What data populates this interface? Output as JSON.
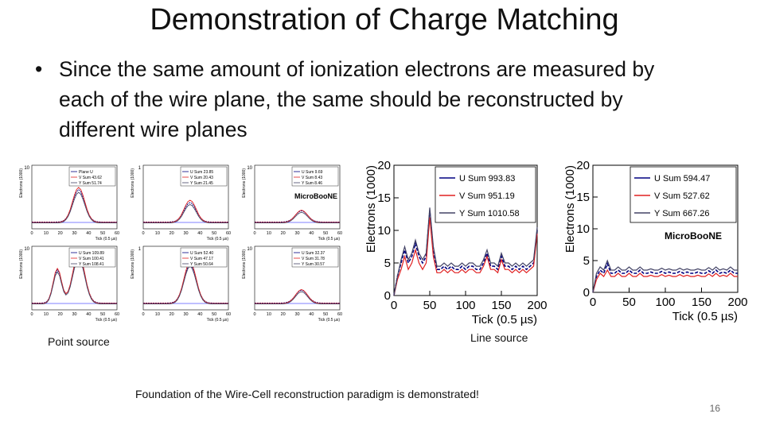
{
  "slide": {
    "title": "Demonstration of Charge Matching",
    "bullet": "Since the same amount of ionization electrons are measured by each of the wire plane, the same should be reconstructed by different wire planes",
    "caption_point": "Point source",
    "caption_line": "Line source",
    "footer": "Foundation of the Wire-Cell reconstruction paradigm is demonstrated!",
    "slide_number": "16"
  },
  "colors": {
    "u": "#000080",
    "v": "#e02020",
    "y": "#444466",
    "ref": "#5555ff"
  },
  "chart_data": [
    {
      "type": "line",
      "title": "",
      "xlabel": "Tick (0.5 µs)",
      "ylabel": "Electrons (1000)",
      "xlim": [
        0,
        200
      ],
      "ylim": [
        0,
        20
      ],
      "xticks": [
        "0",
        "50",
        "100",
        "150",
        "200"
      ],
      "yticks": [
        "0",
        "5",
        "10",
        "15",
        "20"
      ],
      "legend": "top-right",
      "x": [
        0,
        5,
        10,
        15,
        20,
        25,
        30,
        35,
        40,
        45,
        50,
        55,
        60,
        65,
        70,
        75,
        80,
        85,
        90,
        95,
        100,
        105,
        110,
        115,
        120,
        125,
        130,
        135,
        140,
        145,
        150,
        155,
        160,
        165,
        170,
        175,
        180,
        185,
        190,
        195,
        200
      ],
      "series": [
        {
          "name": "U Sum 993.83",
          "values": [
            0,
            3,
            5,
            7,
            5,
            6,
            8,
            6,
            5,
            6,
            13,
            7,
            4,
            4,
            4.5,
            4,
            4.5,
            4,
            4,
            4.5,
            4,
            4.5,
            4.5,
            4,
            4,
            5,
            6.5,
            4.5,
            4.5,
            4,
            6,
            4.5,
            4.5,
            4,
            4.5,
            4,
            4.5,
            4,
            4.5,
            5,
            10
          ]
        },
        {
          "name": "V Sum 951.19",
          "values": [
            0,
            2.5,
            4,
            6,
            4,
            5,
            7,
            5,
            4,
            5,
            12,
            6,
            3.5,
            3.5,
            4,
            3.5,
            4,
            3.5,
            3.5,
            4,
            3.5,
            4,
            4,
            3.5,
            3.5,
            4.5,
            6,
            4,
            4,
            3.5,
            5.5,
            4,
            4,
            3.5,
            4,
            3.5,
            4,
            3.5,
            4,
            4.5,
            9.5
          ]
        },
        {
          "name": "Y Sum 1010.58",
          "values": [
            0,
            3,
            5.5,
            7.5,
            5.5,
            6.5,
            8.5,
            6.5,
            5.5,
            6.5,
            13.5,
            7.5,
            4.5,
            4.5,
            5,
            4.5,
            5,
            4.5,
            4.5,
            5,
            4.5,
            5,
            5,
            4.5,
            4.5,
            5.5,
            7,
            5,
            5,
            4.5,
            6.5,
            5,
            5,
            4.5,
            5,
            4.5,
            5,
            4.5,
            5,
            5.5,
            10.5
          ]
        }
      ]
    },
    {
      "type": "line",
      "title": "",
      "annotation": "MicroBooNE",
      "xlabel": "Tick (0.5 µs)",
      "ylabel": "Electrons (1000)",
      "xlim": [
        0,
        200
      ],
      "ylim": [
        0,
        20
      ],
      "xticks": [
        "0",
        "50",
        "100",
        "150",
        "200"
      ],
      "yticks": [
        "0",
        "5",
        "10",
        "15",
        "20"
      ],
      "legend": "top-right",
      "x": [
        0,
        5,
        10,
        15,
        20,
        25,
        30,
        35,
        40,
        45,
        50,
        55,
        60,
        65,
        70,
        75,
        80,
        85,
        90,
        95,
        100,
        105,
        110,
        115,
        120,
        125,
        130,
        135,
        140,
        145,
        150,
        155,
        160,
        165,
        170,
        175,
        180,
        185,
        190,
        195,
        200
      ],
      "series": [
        {
          "name": "U Sum 594.47",
          "values": [
            0,
            2.5,
            3.5,
            3,
            4.5,
            3,
            3,
            3.5,
            3,
            3,
            3.5,
            3,
            3,
            3.5,
            3,
            3,
            3.2,
            3,
            3,
            3.3,
            3,
            3.2,
            3,
            3,
            3.3,
            3,
            3.2,
            3,
            3,
            3.2,
            3,
            3,
            3.4,
            3,
            3.5,
            3,
            3.2,
            3,
            3.5,
            3,
            3
          ]
        },
        {
          "name": "V Sum 527.62",
          "values": [
            0,
            2,
            3,
            2.5,
            3.5,
            2.5,
            2.5,
            3,
            2.5,
            2.5,
            3,
            2.5,
            2.5,
            3,
            2.5,
            2.5,
            2.7,
            2.5,
            2.5,
            2.8,
            2.5,
            2.7,
            2.5,
            2.5,
            2.8,
            2.5,
            2.7,
            2.5,
            2.5,
            2.7,
            2.5,
            2.5,
            2.9,
            2.5,
            3,
            2.5,
            2.7,
            2.5,
            3,
            2.5,
            2.5
          ]
        },
        {
          "name": "Y Sum 667.26",
          "values": [
            0,
            3,
            4,
            3.5,
            5,
            3.5,
            3.5,
            4,
            3.5,
            3.5,
            4,
            3.5,
            3.5,
            4,
            3.5,
            3.5,
            3.7,
            3.5,
            3.5,
            3.8,
            3.5,
            3.7,
            3.5,
            3.5,
            3.8,
            3.5,
            3.7,
            3.5,
            3.5,
            3.7,
            3.5,
            3.5,
            3.9,
            3.5,
            4,
            3.5,
            3.7,
            3.5,
            4,
            3.5,
            3.5
          ]
        }
      ]
    }
  ],
  "point_source_panels": [
    {
      "legend": [
        "Plane U",
        "V Sum 43.62",
        "Y Sum 51.74"
      ],
      "ymax": "10",
      "xticks": [
        "0",
        "10",
        "20",
        "30",
        "40",
        "50",
        "60"
      ],
      "xlabel": "Tick (0.5 µs)",
      "ylabel": "Electrons (1000)",
      "peak": [
        5.8,
        6.3,
        5.5
      ]
    },
    {
      "legend": [
        "U Sum 23.85",
        "V Sum 20.43",
        "Y Sum 21.45"
      ],
      "ymax": "1",
      "xticks": [
        "0",
        "10",
        "20",
        "30",
        "40",
        "50",
        "60"
      ],
      "xlabel": "Tick (0.5 µs)",
      "ylabel": "Electrons (1000)",
      "peak": [
        0.35,
        0.4,
        0.33
      ]
    },
    {
      "legend": [
        "U Sum 9.69",
        "V Sum 8.43",
        "Y Sum 8.46"
      ],
      "annotation": "MicroBooNE",
      "ymax": "10",
      "xticks": [
        "0",
        "10",
        "20",
        "30",
        "40",
        "50",
        "60"
      ],
      "xlabel": "Tick (0.5 µs)",
      "ylabel": "Electrons (1000)",
      "peak": [
        2.0,
        2.2,
        1.9
      ]
    },
    {
      "legend": [
        "U Sum 109.89",
        "V Sum 100.41",
        "Y Sum 108.41"
      ],
      "ymax": "10",
      "xticks": [
        "0",
        "10",
        "20",
        "30",
        "40",
        "50",
        "60"
      ],
      "xlabel": "Tick (0.5 µs)",
      "ylabel": "Electrons (1000)",
      "peak": [
        8.5,
        9.0,
        8.2
      ]
    },
    {
      "legend": [
        "U Sum 52.40",
        "V Sum 47.17",
        "Y Sum 50.64"
      ],
      "ymax": "1",
      "xticks": [
        "0",
        "10",
        "20",
        "30",
        "40",
        "50",
        "60"
      ],
      "xlabel": "Tick (0.5 µs)",
      "ylabel": "Electrons (1000)",
      "peak": [
        0.7,
        0.75,
        0.68
      ]
    },
    {
      "legend": [
        "U Sum 32.37",
        "V Sum 31.78",
        "Y Sum 30.57"
      ],
      "ymax": "10",
      "xticks": [
        "0",
        "10",
        "20",
        "30",
        "40",
        "50",
        "60"
      ],
      "xlabel": "Tick (0.5 µs)",
      "ylabel": "Electrons (1000)",
      "peak": [
        2.3,
        2.5,
        2.2
      ]
    }
  ]
}
